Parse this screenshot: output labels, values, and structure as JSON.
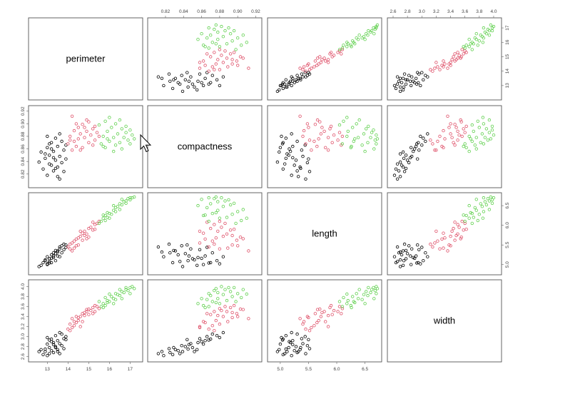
{
  "chart_data": {
    "type": "scatter",
    "variables": [
      {
        "name": "perimeter",
        "range": [
          12.3,
          17.4
        ],
        "ticks": [
          "13",
          "14",
          "15",
          "16",
          "17"
        ]
      },
      {
        "name": "compactness",
        "range": [
          0.805,
          0.922
        ],
        "ticks": [
          "0.82",
          "0.84",
          "0.86",
          "0.88",
          "0.90",
          "0.92"
        ]
      },
      {
        "name": "length",
        "range": [
          4.85,
          6.72
        ],
        "ticks": [
          "5.0",
          "5.5",
          "6.0",
          "6.5"
        ]
      },
      {
        "name": "width",
        "range": [
          2.58,
          4.05
        ],
        "ticks": [
          "2.6",
          "2.8",
          "3.0",
          "3.2",
          "3.4",
          "3.6",
          "3.8",
          "4.0"
        ]
      }
    ],
    "series": [
      {
        "color": "#000000",
        "points": [
          [
            12.6,
            0.839,
            4.95,
            2.7
          ],
          [
            12.8,
            0.828,
            5.05,
            2.64
          ],
          [
            12.9,
            0.845,
            5.1,
            2.75
          ],
          [
            13.0,
            0.862,
            5.0,
            2.85
          ],
          [
            13.0,
            0.818,
            5.2,
            2.62
          ],
          [
            13.1,
            0.85,
            5.15,
            2.78
          ],
          [
            13.2,
            0.834,
            5.25,
            2.72
          ],
          [
            13.2,
            0.87,
            5.05,
            2.95
          ],
          [
            13.3,
            0.825,
            5.3,
            2.68
          ],
          [
            13.3,
            0.856,
            5.18,
            2.88
          ],
          [
            13.4,
            0.842,
            5.28,
            2.8
          ],
          [
            13.4,
            0.877,
            5.1,
            3.02
          ],
          [
            13.5,
            0.831,
            5.35,
            2.74
          ],
          [
            13.5,
            0.864,
            5.22,
            2.92
          ],
          [
            13.6,
            0.848,
            5.4,
            2.86
          ],
          [
            13.6,
            0.812,
            5.45,
            2.66
          ],
          [
            13.7,
            0.872,
            5.3,
            3.05
          ],
          [
            13.7,
            0.838,
            5.48,
            2.82
          ],
          [
            13.8,
            0.858,
            5.38,
            2.96
          ],
          [
            13.8,
            0.824,
            5.52,
            2.76
          ],
          [
            13.9,
            0.866,
            5.44,
            3.0
          ],
          [
            13.0,
            0.88,
            5.02,
            2.98
          ],
          [
            12.9,
            0.852,
            5.12,
            2.7
          ],
          [
            13.1,
            0.836,
            5.08,
            2.66
          ],
          [
            13.3,
            0.846,
            5.22,
            2.84
          ],
          [
            13.5,
            0.816,
            5.32,
            2.7
          ],
          [
            13.2,
            0.86,
            5.16,
            2.9
          ],
          [
            13.6,
            0.884,
            5.2,
            3.08
          ],
          [
            13.4,
            0.829,
            5.36,
            2.78
          ],
          [
            13.1,
            0.868,
            5.04,
            2.93
          ],
          [
            12.7,
            0.855,
            4.98,
            2.74
          ],
          [
            13.9,
            0.844,
            5.5,
            2.94
          ]
        ]
      },
      {
        "color": "#df536b",
        "points": [
          [
            14.0,
            0.868,
            5.45,
            3.15
          ],
          [
            14.1,
            0.88,
            5.4,
            3.25
          ],
          [
            14.2,
            0.858,
            5.55,
            3.18
          ],
          [
            14.3,
            0.889,
            5.42,
            3.3
          ],
          [
            14.3,
            0.872,
            5.6,
            3.22
          ],
          [
            14.4,
            0.864,
            5.65,
            3.28
          ],
          [
            14.5,
            0.894,
            5.5,
            3.38
          ],
          [
            14.5,
            0.876,
            5.68,
            3.32
          ],
          [
            14.6,
            0.884,
            5.72,
            3.4
          ],
          [
            14.7,
            0.862,
            5.8,
            3.3
          ],
          [
            14.7,
            0.899,
            5.62,
            3.46
          ],
          [
            14.8,
            0.878,
            5.85,
            3.42
          ],
          [
            14.9,
            0.888,
            5.78,
            3.5
          ],
          [
            15.0,
            0.87,
            5.92,
            3.44
          ],
          [
            15.0,
            0.903,
            5.7,
            3.55
          ],
          [
            15.1,
            0.882,
            5.95,
            3.52
          ],
          [
            15.2,
            0.892,
            5.88,
            3.58
          ],
          [
            15.3,
            0.874,
            6.02,
            3.5
          ],
          [
            15.3,
            0.896,
            5.9,
            3.62
          ],
          [
            15.4,
            0.886,
            6.05,
            3.6
          ],
          [
            14.2,
            0.912,
            5.35,
            3.36
          ],
          [
            14.6,
            0.858,
            5.85,
            3.2
          ],
          [
            14.9,
            0.906,
            5.66,
            3.54
          ],
          [
            15.5,
            0.88,
            6.1,
            3.56
          ],
          [
            14.4,
            0.9,
            5.48,
            3.4
          ],
          [
            15.2,
            0.866,
            6.08,
            3.46
          ],
          [
            14.1,
            0.874,
            5.52,
            3.12
          ],
          [
            14.8,
            0.894,
            5.74,
            3.48
          ]
        ]
      },
      {
        "color": "#61d04f",
        "points": [
          [
            15.6,
            0.868,
            6.1,
            3.6
          ],
          [
            15.7,
            0.88,
            6.18,
            3.66
          ],
          [
            15.8,
            0.862,
            6.25,
            3.62
          ],
          [
            15.9,
            0.888,
            6.2,
            3.72
          ],
          [
            16.0,
            0.872,
            6.3,
            3.7
          ],
          [
            16.1,
            0.894,
            6.28,
            3.8
          ],
          [
            16.2,
            0.878,
            6.38,
            3.76
          ],
          [
            16.3,
            0.866,
            6.45,
            3.74
          ],
          [
            16.3,
            0.9,
            6.35,
            3.86
          ],
          [
            16.4,
            0.884,
            6.48,
            3.84
          ],
          [
            16.5,
            0.87,
            6.55,
            3.82
          ],
          [
            16.6,
            0.892,
            6.52,
            3.9
          ],
          [
            16.7,
            0.878,
            6.6,
            3.88
          ],
          [
            16.8,
            0.886,
            6.62,
            3.94
          ],
          [
            16.9,
            0.874,
            6.68,
            3.92
          ],
          [
            17.0,
            0.89,
            6.65,
            3.98
          ],
          [
            17.1,
            0.882,
            6.7,
            4.0
          ],
          [
            17.2,
            0.876,
            6.72,
            3.96
          ],
          [
            15.5,
            0.898,
            6.05,
            3.7
          ],
          [
            15.8,
            0.904,
            6.12,
            3.78
          ],
          [
            16.0,
            0.91,
            6.18,
            3.85
          ],
          [
            16.6,
            0.86,
            6.66,
            3.76
          ],
          [
            16.2,
            0.856,
            6.5,
            3.66
          ],
          [
            15.9,
            0.876,
            6.32,
            3.68
          ],
          [
            16.8,
            0.896,
            6.56,
            3.98
          ],
          [
            16.5,
            0.906,
            6.4,
            3.94
          ],
          [
            17.0,
            0.868,
            6.7,
            3.86
          ],
          [
            15.7,
            0.864,
            6.26,
            3.58
          ]
        ]
      }
    ]
  }
}
